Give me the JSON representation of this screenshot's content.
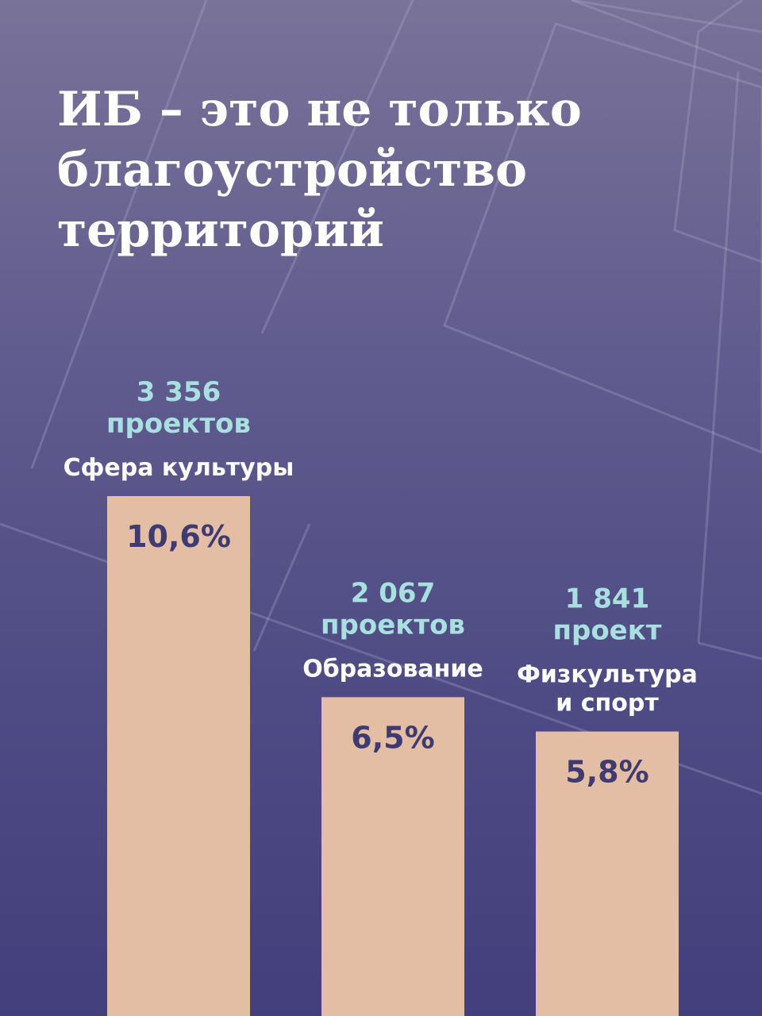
{
  "title_lines": [
    "ИБ – это не только",
    "благоустройство",
    "территорий"
  ],
  "colors": {
    "bar": "#e3bea4",
    "count_text": "#a8e0e0",
    "category_text": "#ffffff",
    "percent_text": "#3e3a72"
  },
  "chart_data": {
    "type": "bar",
    "title": "ИБ – это не только благоустройство территорий",
    "categories": [
      "Сфера культуры",
      "Образование",
      "Физкультура и спорт"
    ],
    "category_lines": [
      [
        "Сфера культуры"
      ],
      [
        "Образование"
      ],
      [
        "Физкультура",
        "и спорт"
      ]
    ],
    "values": [
      10.6,
      6.5,
      5.8
    ],
    "value_labels": [
      "10,6%",
      "6,5%",
      "5,8%"
    ],
    "project_counts": [
      3356,
      2067,
      1841
    ],
    "count_lines": [
      [
        "3 356",
        "проектов"
      ],
      [
        "2 067",
        "проектов"
      ],
      [
        "1 841",
        "проект"
      ]
    ],
    "ylim": [
      0,
      10.6
    ],
    "grid": false,
    "legend": "none"
  }
}
